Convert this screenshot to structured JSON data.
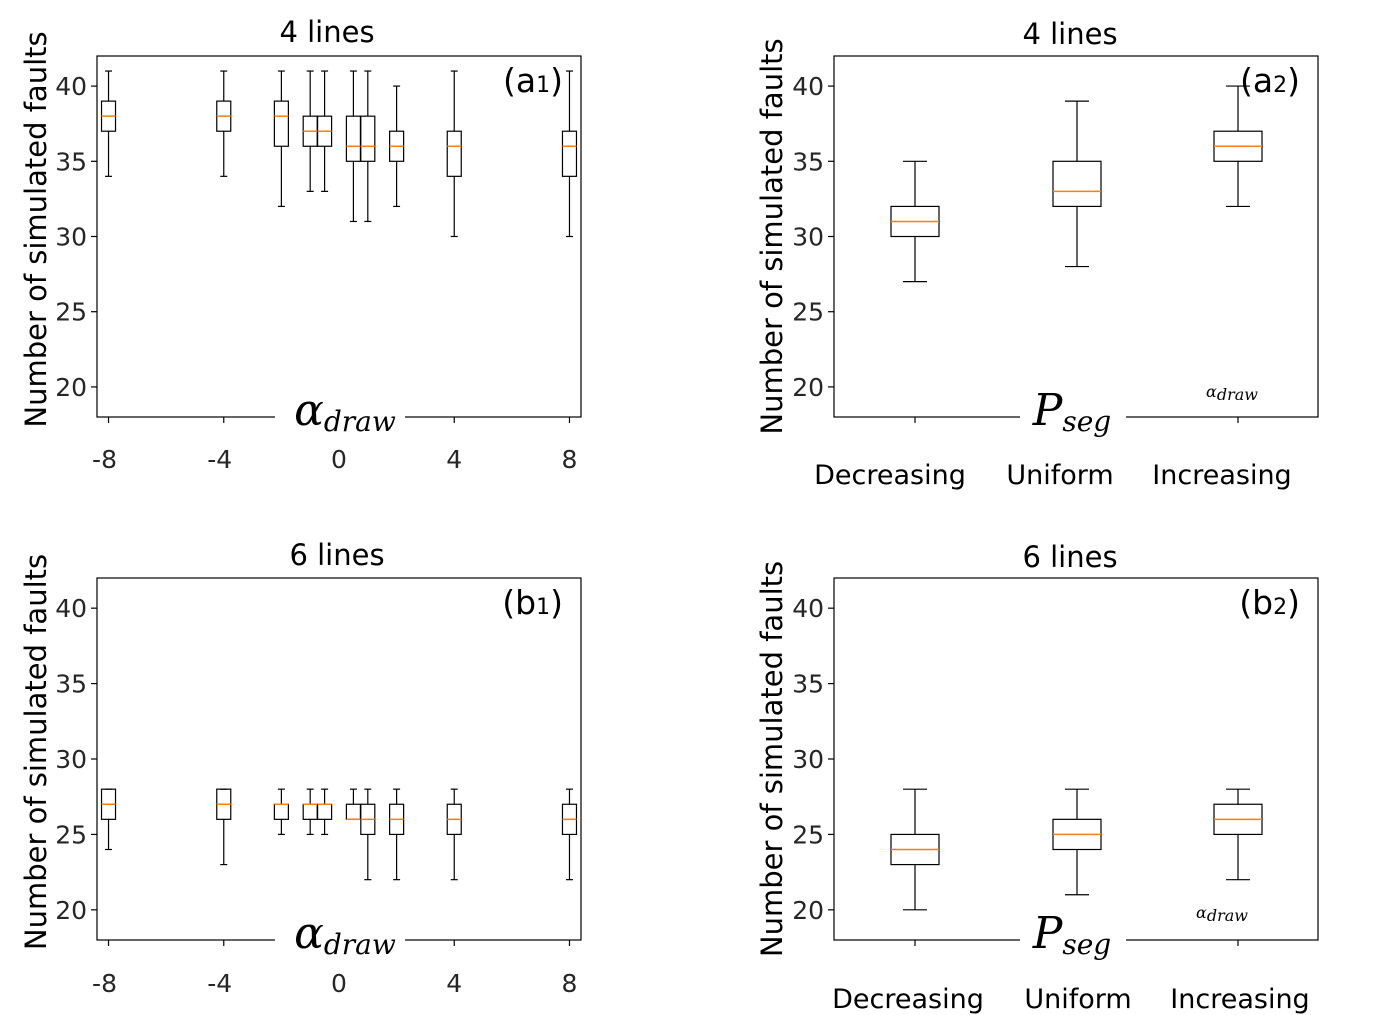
{
  "chart_data": [
    {
      "id": "a1",
      "type": "box",
      "title": "4 lines",
      "panel_label": "(a1)",
      "ylabel": "Number of simulated faults",
      "xlabel": "α_draw",
      "x_ticks": [
        "-8",
        "-4",
        "0",
        "4",
        "8"
      ],
      "y_ticks": [
        "20",
        "25",
        "30",
        "35",
        "40"
      ],
      "xlim": [
        -8.4,
        8.4
      ],
      "ylim": [
        18,
        42
      ],
      "grid": false,
      "boxes": [
        {
          "x": -8,
          "whislo": 34,
          "q1": 37,
          "med": 38,
          "q3": 39,
          "whishi": 41
        },
        {
          "x": -4,
          "whislo": 34,
          "q1": 37,
          "med": 38,
          "q3": 39,
          "whishi": 41
        },
        {
          "x": -2,
          "whislo": 32,
          "q1": 36,
          "med": 38,
          "q3": 39,
          "whishi": 41
        },
        {
          "x": -1,
          "whislo": 33,
          "q1": 36,
          "med": 37,
          "q3": 38,
          "whishi": 41
        },
        {
          "x": -0.5,
          "whislo": 33,
          "q1": 36,
          "med": 37,
          "q3": 38,
          "whishi": 41
        },
        {
          "x": 0.5,
          "whislo": 31,
          "q1": 35,
          "med": 36,
          "q3": 38,
          "whishi": 41
        },
        {
          "x": 1,
          "whislo": 31,
          "q1": 35,
          "med": 36,
          "q3": 38,
          "whishi": 41
        },
        {
          "x": 2,
          "whislo": 32,
          "q1": 35,
          "med": 36,
          "q3": 37,
          "whishi": 40
        },
        {
          "x": 4,
          "whislo": 30,
          "q1": 34,
          "med": 36,
          "q3": 37,
          "whishi": 41
        },
        {
          "x": 8,
          "whislo": 30,
          "q1": 34,
          "med": 36,
          "q3": 37,
          "whishi": 41
        }
      ]
    },
    {
      "id": "a2",
      "type": "box",
      "title": "4 lines",
      "panel_label": "(a2)",
      "ylabel": "Number of simulated faults",
      "xlabel": "P_seg",
      "xlabel_extra": "α_draw",
      "categories": [
        "Decreasing",
        "Uniform",
        "Increasing"
      ],
      "y_ticks": [
        "20",
        "25",
        "30",
        "35",
        "40"
      ],
      "ylim": [
        18,
        42
      ],
      "grid": false,
      "boxes": [
        {
          "cat": 0,
          "whislo": 27,
          "q1": 30,
          "med": 31,
          "q3": 32,
          "whishi": 35
        },
        {
          "cat": 1,
          "whislo": 28,
          "q1": 32,
          "med": 33,
          "q3": 35,
          "whishi": 39
        },
        {
          "cat": 2,
          "whislo": 32,
          "q1": 35,
          "med": 36,
          "q3": 37,
          "whishi": 40
        }
      ]
    },
    {
      "id": "b1",
      "type": "box",
      "title": "6 lines",
      "panel_label": "(b1)",
      "ylabel": "Number of simulated faults",
      "xlabel": "α_draw",
      "x_ticks": [
        "-8",
        "-4",
        "0",
        "4",
        "8"
      ],
      "y_ticks": [
        "20",
        "25",
        "30",
        "35",
        "40"
      ],
      "xlim": [
        -8.4,
        8.4
      ],
      "ylim": [
        18,
        42
      ],
      "grid": false,
      "boxes": [
        {
          "x": -8,
          "whislo": 24,
          "q1": 26,
          "med": 27,
          "q3": 28,
          "whishi": 28
        },
        {
          "x": -4,
          "whislo": 23,
          "q1": 26,
          "med": 27,
          "q3": 28,
          "whishi": 28
        },
        {
          "x": -2,
          "whislo": 25,
          "q1": 26,
          "med": 27,
          "q3": 27,
          "whishi": 28
        },
        {
          "x": -1,
          "whislo": 25,
          "q1": 26,
          "med": 27,
          "q3": 27,
          "whishi": 28
        },
        {
          "x": -0.5,
          "whislo": 25,
          "q1": 26,
          "med": 27,
          "q3": 27,
          "whishi": 28
        },
        {
          "x": 0.5,
          "whislo": 26,
          "q1": 26,
          "med": 26,
          "q3": 27,
          "whishi": 28
        },
        {
          "x": 1,
          "whislo": 22,
          "q1": 25,
          "med": 26,
          "q3": 27,
          "whishi": 28
        },
        {
          "x": 2,
          "whislo": 22,
          "q1": 25,
          "med": 26,
          "q3": 27,
          "whishi": 28
        },
        {
          "x": 4,
          "whislo": 22,
          "q1": 25,
          "med": 26,
          "q3": 27,
          "whishi": 28
        },
        {
          "x": 8,
          "whislo": 22,
          "q1": 25,
          "med": 26,
          "q3": 27,
          "whishi": 28
        }
      ]
    },
    {
      "id": "b2",
      "type": "box",
      "title": "6 lines",
      "panel_label": "(b2)",
      "ylabel": "Number of simulated faults",
      "xlabel": "P_seg",
      "xlabel_extra": "α_draw",
      "categories": [
        "Decreasing",
        "Uniform",
        "Increasing"
      ],
      "y_ticks": [
        "20",
        "25",
        "30",
        "35",
        "40"
      ],
      "ylim": [
        18,
        42
      ],
      "grid": false,
      "boxes": [
        {
          "cat": 0,
          "whislo": 20,
          "q1": 23,
          "med": 24,
          "q3": 25,
          "whishi": 28
        },
        {
          "cat": 1,
          "whislo": 21,
          "q1": 24,
          "med": 25,
          "q3": 26,
          "whishi": 28
        },
        {
          "cat": 2,
          "whislo": 22,
          "q1": 25,
          "med": 26,
          "q3": 27,
          "whishi": 28
        }
      ]
    }
  ],
  "colors": {
    "median": "#ff7f0e",
    "box": "#000000",
    "tick_text": "#262626"
  }
}
